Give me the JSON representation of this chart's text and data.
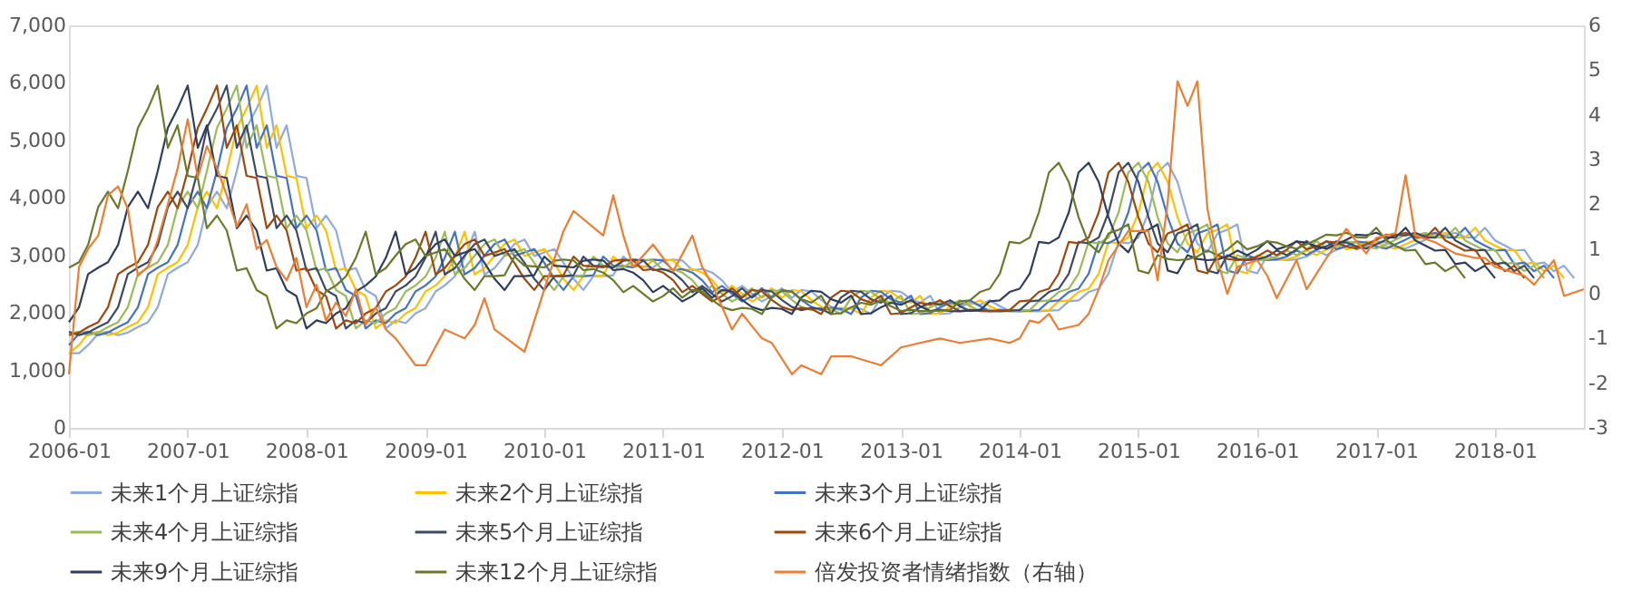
{
  "chart_data": {
    "type": "line",
    "x": [
      "2006-01",
      "2006-02",
      "2006-03",
      "2006-04",
      "2006-05",
      "2006-06",
      "2006-07",
      "2006-08",
      "2006-09",
      "2006-10",
      "2006-11",
      "2006-12",
      "2007-01",
      "2007-02",
      "2007-03",
      "2007-04",
      "2007-05",
      "2007-06",
      "2007-07",
      "2007-08",
      "2007-09",
      "2007-10",
      "2007-11",
      "2007-12",
      "2008-01",
      "2008-02",
      "2008-03",
      "2008-04",
      "2008-05",
      "2008-06",
      "2008-07",
      "2008-08",
      "2008-09",
      "2008-10",
      "2008-11",
      "2008-12",
      "2009-01",
      "2009-02",
      "2009-03",
      "2009-04",
      "2009-05",
      "2009-06",
      "2009-07",
      "2009-08",
      "2009-09",
      "2009-10",
      "2009-11",
      "2009-12",
      "2010-01",
      "2010-02",
      "2010-03",
      "2010-04",
      "2010-05",
      "2010-06",
      "2010-07",
      "2010-08",
      "2010-09",
      "2010-10",
      "2010-11",
      "2010-12",
      "2011-01",
      "2011-02",
      "2011-03",
      "2011-04",
      "2011-05",
      "2011-06",
      "2011-07",
      "2011-08",
      "2011-09",
      "2011-10",
      "2011-11",
      "2011-12",
      "2012-01",
      "2012-02",
      "2012-03",
      "2012-04",
      "2012-05",
      "2012-06",
      "2012-07",
      "2012-08",
      "2012-09",
      "2012-10",
      "2012-11",
      "2012-12",
      "2013-01",
      "2013-02",
      "2013-03",
      "2013-04",
      "2013-05",
      "2013-06",
      "2013-07",
      "2013-08",
      "2013-09",
      "2013-10",
      "2013-11",
      "2013-12",
      "2014-01",
      "2014-02",
      "2014-03",
      "2014-04",
      "2014-05",
      "2014-06",
      "2014-07",
      "2014-08",
      "2014-09",
      "2014-10",
      "2014-11",
      "2014-12",
      "2015-01",
      "2015-02",
      "2015-03",
      "2015-04",
      "2015-05",
      "2015-06",
      "2015-07",
      "2015-08",
      "2015-09",
      "2015-10",
      "2015-11",
      "2015-12",
      "2016-01",
      "2016-02",
      "2016-03",
      "2016-04",
      "2016-05",
      "2016-06",
      "2016-07",
      "2016-08",
      "2016-09",
      "2016-10",
      "2016-11",
      "2016-12",
      "2017-01",
      "2017-02",
      "2017-03",
      "2017-04",
      "2017-05",
      "2017-06",
      "2017-07",
      "2017-08",
      "2017-09",
      "2017-10",
      "2017-11",
      "2017-12",
      "2018-01",
      "2018-02",
      "2018-03",
      "2018-04",
      "2018-05",
      "2018-06",
      "2018-07",
      "2018-08",
      "2018-09"
    ],
    "series": [
      {
        "name": "未来1个月上证综指",
        "color": "#8faadc",
        "values": [
          1299,
          1298,
          1440,
          1641,
          1672,
          1612,
          1658,
          1753,
          1838,
          2099,
          2675,
          2786,
          2881,
          3183,
          3841,
          4109,
          3820,
          4471,
          5218,
          5552,
          5954,
          4871,
          5262,
          4383,
          4348,
          3473,
          3693,
          3433,
          2736,
          2776,
          2397,
          2293,
          1729,
          1871,
          1821,
          1991,
          2082,
          2373,
          2477,
          2633,
          2959,
          3412,
          2668,
          2779,
          2996,
          3195,
          3277,
          2989,
          3051,
          3110,
          2871,
          2592,
          2398,
          2638,
          2639,
          2656,
          2979,
          2820,
          2808,
          2791,
          2906,
          2928,
          2912,
          2743,
          2762,
          2701,
          2568,
          2359,
          2469,
          2333,
          2199,
          2292,
          2429,
          2263,
          2397,
          2373,
          2226,
          2103,
          2047,
          2086,
          2069,
          1980,
          2269,
          2385,
          2366,
          2237,
          2178,
          2301,
          1979,
          1994,
          2098,
          2175,
          2141,
          2220,
          2116,
          2033,
          2056,
          2033,
          2026,
          2039,
          2048,
          2202,
          2217,
          2364,
          2420,
          2683,
          3235,
          3210,
          3310,
          3748,
          4442,
          4612,
          4277,
          3664,
          3206,
          3053,
          3383,
          3446,
          3539,
          2738,
          2688,
          3004,
          2938,
          2917,
          2930,
          2979,
          3085,
          3005,
          3100,
          3250,
          3104,
          3159,
          3242,
          3223,
          3155,
          3117,
          3192,
          3273,
          3361,
          3349,
          3393,
          3317,
          3307,
          3481,
          3259,
          3169,
          3082,
          3095,
          2847,
          2876,
          2725,
          2821,
          2603
        ]
      },
      {
        "name": "未来2个月上证综指",
        "color": "#ffc000",
        "values": [
          1298,
          1440,
          1641,
          1672,
          1612,
          1658,
          1753,
          1838,
          2099,
          2675,
          2786,
          2881,
          3183,
          3841,
          4109,
          3820,
          4471,
          5218,
          5552,
          5954,
          4871,
          5262,
          4383,
          4348,
          3473,
          3693,
          3433,
          2736,
          2776,
          2397,
          2293,
          1729,
          1871,
          1821,
          1991,
          2082,
          2373,
          2477,
          2633,
          2959,
          3412,
          2668,
          2779,
          2996,
          3195,
          3277,
          2989,
          3051,
          3110,
          2871,
          2592,
          2398,
          2638,
          2639,
          2656,
          2979,
          2820,
          2808,
          2791,
          2906,
          2928,
          2912,
          2743,
          2762,
          2701,
          2568,
          2359,
          2469,
          2333,
          2199,
          2292,
          2429,
          2263,
          2397,
          2373,
          2226,
          2103,
          2047,
          2086,
          2069,
          1980,
          2269,
          2385,
          2366,
          2237,
          2178,
          2301,
          1979,
          1994,
          2098,
          2175,
          2141,
          2220,
          2116,
          2033,
          2056,
          2033,
          2026,
          2039,
          2048,
          2202,
          2217,
          2364,
          2420,
          2683,
          3235,
          3210,
          3310,
          3748,
          4442,
          4612,
          4277,
          3664,
          3206,
          3053,
          3383,
          3446,
          3539,
          2738,
          2688,
          3004,
          2938,
          2917,
          2930,
          2979,
          3085,
          3005,
          3100,
          3250,
          3104,
          3159,
          3242,
          3223,
          3155,
          3117,
          3192,
          3273,
          3361,
          3349,
          3393,
          3317,
          3307,
          3481,
          3259,
          3169,
          3082,
          3095,
          2847,
          2876,
          2725,
          2821,
          2603,
          null
        ]
      },
      {
        "name": "未来3个月上证综指",
        "color": "#4472c4",
        "values": [
          1440,
          1641,
          1672,
          1612,
          1658,
          1753,
          1838,
          2099,
          2675,
          2786,
          2881,
          3183,
          3841,
          4109,
          3820,
          4471,
          5218,
          5552,
          5954,
          4871,
          5262,
          4383,
          4348,
          3473,
          3693,
          3433,
          2736,
          2776,
          2397,
          2293,
          1729,
          1871,
          1821,
          1991,
          2082,
          2373,
          2477,
          2633,
          2959,
          3412,
          2668,
          2779,
          2996,
          3195,
          3277,
          2989,
          3051,
          3110,
          2871,
          2592,
          2398,
          2638,
          2639,
          2656,
          2979,
          2820,
          2808,
          2791,
          2906,
          2928,
          2912,
          2743,
          2762,
          2701,
          2568,
          2359,
          2469,
          2333,
          2199,
          2292,
          2429,
          2263,
          2397,
          2373,
          2226,
          2103,
          2047,
          2086,
          2069,
          1980,
          2269,
          2385,
          2366,
          2237,
          2178,
          2301,
          1979,
          1994,
          2098,
          2175,
          2141,
          2220,
          2116,
          2033,
          2056,
          2033,
          2026,
          2039,
          2048,
          2202,
          2217,
          2364,
          2420,
          2683,
          3235,
          3210,
          3310,
          3748,
          4442,
          4612,
          4277,
          3664,
          3206,
          3053,
          3383,
          3446,
          3539,
          2738,
          2688,
          3004,
          2938,
          2917,
          2930,
          2979,
          3085,
          3005,
          3100,
          3250,
          3104,
          3159,
          3242,
          3223,
          3155,
          3117,
          3192,
          3273,
          3361,
          3349,
          3393,
          3317,
          3307,
          3481,
          3259,
          3169,
          3082,
          3095,
          2847,
          2876,
          2725,
          2821,
          2603,
          null,
          null
        ]
      },
      {
        "name": "未来4个月上证综指",
        "color": "#9bbb59",
        "values": [
          1641,
          1672,
          1612,
          1658,
          1753,
          1838,
          2099,
          2675,
          2786,
          2881,
          3183,
          3841,
          4109,
          3820,
          4471,
          5218,
          5552,
          5954,
          4871,
          5262,
          4383,
          4348,
          3473,
          3693,
          3433,
          2736,
          2776,
          2397,
          2293,
          1729,
          1871,
          1821,
          1991,
          2082,
          2373,
          2477,
          2633,
          2959,
          3412,
          2668,
          2779,
          2996,
          3195,
          3277,
          2989,
          3051,
          3110,
          2871,
          2592,
          2398,
          2638,
          2639,
          2656,
          2979,
          2820,
          2808,
          2791,
          2906,
          2928,
          2912,
          2743,
          2762,
          2701,
          2568,
          2359,
          2469,
          2333,
          2199,
          2292,
          2429,
          2263,
          2397,
          2373,
          2226,
          2103,
          2047,
          2086,
          2069,
          1980,
          2269,
          2385,
          2366,
          2237,
          2178,
          2301,
          1979,
          1994,
          2098,
          2175,
          2141,
          2220,
          2116,
          2033,
          2056,
          2033,
          2026,
          2039,
          2048,
          2202,
          2217,
          2364,
          2420,
          2683,
          3235,
          3210,
          3310,
          3748,
          4442,
          4612,
          4277,
          3664,
          3206,
          3053,
          3383,
          3446,
          3539,
          2738,
          2688,
          3004,
          2938,
          2917,
          2930,
          2979,
          3085,
          3005,
          3100,
          3250,
          3104,
          3159,
          3242,
          3223,
          3155,
          3117,
          3192,
          3273,
          3361,
          3349,
          3393,
          3317,
          3307,
          3481,
          3259,
          3169,
          3082,
          3095,
          2847,
          2876,
          2725,
          2821,
          2603,
          null,
          null,
          null
        ]
      },
      {
        "name": "未来5个月上证综指",
        "color": "#3b4a66",
        "values": [
          1672,
          1612,
          1658,
          1753,
          1838,
          2099,
          2675,
          2786,
          2881,
          3183,
          3841,
          4109,
          3820,
          4471,
          5218,
          5552,
          5954,
          4871,
          5262,
          4383,
          4348,
          3473,
          3693,
          3433,
          2736,
          2776,
          2397,
          2293,
          1729,
          1871,
          1821,
          1991,
          2082,
          2373,
          2477,
          2633,
          2959,
          3412,
          2668,
          2779,
          2996,
          3195,
          3277,
          2989,
          3051,
          3110,
          2871,
          2592,
          2398,
          2638,
          2639,
          2656,
          2979,
          2820,
          2808,
          2791,
          2906,
          2928,
          2912,
          2743,
          2762,
          2701,
          2568,
          2359,
          2469,
          2333,
          2199,
          2292,
          2429,
          2263,
          2397,
          2373,
          2226,
          2103,
          2047,
          2086,
          2069,
          1980,
          2269,
          2385,
          2366,
          2237,
          2178,
          2301,
          1979,
          1994,
          2098,
          2175,
          2141,
          2220,
          2116,
          2033,
          2056,
          2033,
          2026,
          2039,
          2048,
          2202,
          2217,
          2364,
          2420,
          2683,
          3235,
          3210,
          3310,
          3748,
          4442,
          4612,
          4277,
          3664,
          3206,
          3053,
          3383,
          3446,
          3539,
          2738,
          2688,
          3004,
          2938,
          2917,
          2930,
          2979,
          3085,
          3005,
          3100,
          3250,
          3104,
          3159,
          3242,
          3223,
          3155,
          3117,
          3192,
          3273,
          3361,
          3349,
          3393,
          3317,
          3307,
          3481,
          3259,
          3169,
          3082,
          3095,
          2847,
          2876,
          2725,
          2821,
          2603,
          null,
          null,
          null,
          null
        ]
      },
      {
        "name": "未来6个月上证综指",
        "color": "#9e480e",
        "values": [
          1612,
          1658,
          1753,
          1838,
          2099,
          2675,
          2786,
          2881,
          3183,
          3841,
          4109,
          3820,
          4471,
          5218,
          5552,
          5954,
          4871,
          5262,
          4383,
          4348,
          3473,
          3693,
          3433,
          2736,
          2776,
          2397,
          2293,
          1729,
          1871,
          1821,
          1991,
          2082,
          2373,
          2477,
          2633,
          2959,
          3412,
          2668,
          2779,
          2996,
          3195,
          3277,
          2989,
          3051,
          3110,
          2871,
          2592,
          2398,
          2638,
          2639,
          2656,
          2979,
          2820,
          2808,
          2791,
          2906,
          2928,
          2912,
          2743,
          2762,
          2701,
          2568,
          2359,
          2469,
          2333,
          2199,
          2292,
          2429,
          2263,
          2397,
          2373,
          2226,
          2103,
          2047,
          2086,
          2069,
          1980,
          2269,
          2385,
          2366,
          2237,
          2178,
          2301,
          1979,
          1994,
          2098,
          2175,
          2141,
          2220,
          2116,
          2033,
          2056,
          2033,
          2026,
          2039,
          2048,
          2202,
          2217,
          2364,
          2420,
          2683,
          3235,
          3210,
          3310,
          3748,
          4442,
          4612,
          4277,
          3664,
          3206,
          3053,
          3383,
          3446,
          3539,
          2738,
          2688,
          3004,
          2938,
          2917,
          2930,
          2979,
          3085,
          3005,
          3100,
          3250,
          3104,
          3159,
          3242,
          3223,
          3155,
          3117,
          3192,
          3273,
          3361,
          3349,
          3393,
          3317,
          3307,
          3481,
          3259,
          3169,
          3082,
          3095,
          2847,
          2876,
          2725,
          2821,
          2603,
          null,
          null,
          null,
          null,
          null
        ]
      },
      {
        "name": "未来9个月上证综指",
        "color": "#2f3e5c",
        "values": [
          1838,
          2099,
          2675,
          2786,
          2881,
          3183,
          3841,
          4109,
          3820,
          4471,
          5218,
          5552,
          5954,
          4871,
          5262,
          4383,
          4348,
          3473,
          3693,
          3433,
          2736,
          2776,
          2397,
          2293,
          1729,
          1871,
          1821,
          1991,
          2082,
          2373,
          2477,
          2633,
          2959,
          3412,
          2668,
          2779,
          2996,
          3195,
          3277,
          2989,
          3051,
          3110,
          2871,
          2592,
          2398,
          2638,
          2639,
          2656,
          2979,
          2820,
          2808,
          2791,
          2906,
          2928,
          2912,
          2743,
          2762,
          2701,
          2568,
          2359,
          2469,
          2333,
          2199,
          2292,
          2429,
          2263,
          2397,
          2373,
          2226,
          2103,
          2047,
          2086,
          2069,
          1980,
          2269,
          2385,
          2366,
          2237,
          2178,
          2301,
          1979,
          1994,
          2098,
          2175,
          2141,
          2220,
          2116,
          2033,
          2056,
          2033,
          2026,
          2039,
          2048,
          2202,
          2217,
          2364,
          2420,
          2683,
          3235,
          3210,
          3310,
          3748,
          4442,
          4612,
          4277,
          3664,
          3206,
          3053,
          3383,
          3446,
          3539,
          2738,
          2688,
          3004,
          2938,
          2917,
          2930,
          2979,
          3085,
          3005,
          3100,
          3250,
          3104,
          3159,
          3242,
          3223,
          3155,
          3117,
          3192,
          3273,
          3361,
          3349,
          3393,
          3317,
          3307,
          3481,
          3259,
          3169,
          3082,
          3095,
          2847,
          2876,
          2725,
          2821,
          2603,
          null,
          null,
          null,
          null,
          null,
          null,
          null,
          null
        ]
      },
      {
        "name": "未来12个月上证综指",
        "color": "#6a7a2a",
        "values": [
          2786,
          2881,
          3183,
          3841,
          4109,
          3820,
          4471,
          5218,
          5552,
          5954,
          4871,
          5262,
          4383,
          4348,
          3473,
          3693,
          3433,
          2736,
          2776,
          2397,
          2293,
          1729,
          1871,
          1821,
          1991,
          2082,
          2373,
          2477,
          2633,
          2959,
          3412,
          2668,
          2779,
          2996,
          3195,
          3277,
          2989,
          3051,
          3110,
          2871,
          2592,
          2398,
          2638,
          2639,
          2656,
          2979,
          2820,
          2808,
          2791,
          2906,
          2928,
          2912,
          2743,
          2762,
          2701,
          2568,
          2359,
          2469,
          2333,
          2199,
          2292,
          2429,
          2263,
          2397,
          2373,
          2226,
          2103,
          2047,
          2086,
          2069,
          1980,
          2269,
          2385,
          2366,
          2237,
          2178,
          2301,
          1979,
          1994,
          2098,
          2175,
          2141,
          2220,
          2116,
          2033,
          2056,
          2033,
          2026,
          2039,
          2048,
          2202,
          2217,
          2364,
          2420,
          2683,
          3235,
          3210,
          3310,
          3748,
          4442,
          4612,
          4277,
          3664,
          3206,
          3053,
          3383,
          3446,
          3539,
          2738,
          2688,
          3004,
          2938,
          2917,
          2930,
          2979,
          3085,
          3005,
          3100,
          3250,
          3104,
          3159,
          3242,
          3223,
          3155,
          3117,
          3192,
          3273,
          3361,
          3349,
          3393,
          3317,
          3307,
          3481,
          3259,
          3169,
          3082,
          3095,
          2847,
          2876,
          2725,
          2821,
          2603,
          null,
          null,
          null,
          null,
          null,
          null,
          null,
          null,
          null,
          null,
          null
        ]
      },
      {
        "name": "倍发投资者情绪指数（右轴）",
        "color": "#ed7d31",
        "axis": "y2",
        "x": [
          "2006-01",
          "2006-02",
          "2006-03",
          "2006-04",
          "2006-05",
          "2006-06",
          "2006-07",
          "2006-08",
          "2006-09",
          "2006-10",
          "2006-11",
          "2006-12",
          "2007-01",
          "2007-02",
          "2007-03",
          "2007-04",
          "2007-05",
          "2007-06",
          "2007-07",
          "2007-08",
          "2007-09",
          "2007-10",
          "2007-11",
          "2007-12",
          "2008-01",
          "2008-02",
          "2008-03",
          "2008-04",
          "2008-05",
          "2008-06",
          "2008-07",
          "2008-08",
          "2008-09",
          "2008-10",
          "2008-11",
          "2008-12",
          "2009-01",
          "2009-03",
          "2009-05",
          "2009-06",
          "2009-07",
          "2009-08",
          "2009-11",
          "2010-01",
          "2010-03",
          "2010-04",
          "2010-07",
          "2010-08",
          "2010-09",
          "2010-10",
          "2010-12",
          "2011-02",
          "2011-04",
          "2011-05",
          "2011-06",
          "2011-08",
          "2011-09",
          "2011-11",
          "2011-12",
          "2012-02",
          "2012-03",
          "2012-05",
          "2012-06",
          "2012-08",
          "2012-11",
          "2013-01",
          "2013-03",
          "2013-05",
          "2013-07",
          "2013-10",
          "2013-12",
          "2014-01",
          "2014-02",
          "2014-03",
          "2014-04",
          "2014-05",
          "2014-07",
          "2014-08",
          "2014-09",
          "2014-10",
          "2014-12",
          "2015-02",
          "2015-03",
          "2015-04",
          "2015-05",
          "2015-06",
          "2015-07",
          "2015-08",
          "2015-09",
          "2015-10",
          "2015-11",
          "2016-01",
          "2016-02",
          "2016-03",
          "2016-05",
          "2016-06",
          "2016-08",
          "2016-10",
          "2016-12",
          "2017-01",
          "2017-03",
          "2017-04",
          "2017-05",
          "2017-07",
          "2017-09",
          "2017-11",
          "2017-12",
          "2018-01",
          "2018-04",
          "2018-05",
          "2018-07",
          "2018-08",
          "2018-10"
        ],
        "values": [
          -1.8,
          0.6,
          1.0,
          1.3,
          2.2,
          2.4,
          1.9,
          0.4,
          0.6,
          1.2,
          2.0,
          2.8,
          3.9,
          2.6,
          3.3,
          2.8,
          2.2,
          1.5,
          2.0,
          1.0,
          1.2,
          0.6,
          0.3,
          0.8,
          -0.3,
          0.2,
          -0.6,
          -0.2,
          -0.5,
          0.1,
          -0.7,
          -0.3,
          -0.8,
          -1.0,
          -1.3,
          -1.6,
          -1.6,
          -0.8,
          -1.0,
          -0.7,
          -0.1,
          -0.8,
          -1.3,
          0.1,
          1.4,
          1.85,
          1.3,
          2.2,
          1.3,
          0.6,
          1.1,
          0.5,
          1.3,
          0.6,
          0.2,
          -0.8,
          -0.45,
          -1.0,
          -1.1,
          -1.8,
          -1.6,
          -1.8,
          -1.4,
          -1.4,
          -1.6,
          -1.2,
          -1.1,
          -1.0,
          -1.1,
          -1.0,
          -1.1,
          -1.0,
          -0.6,
          -0.65,
          -0.45,
          -0.8,
          -0.7,
          -0.45,
          0.1,
          0.75,
          1.4,
          1.4,
          0.3,
          2.05,
          4.75,
          4.2,
          4.75,
          1.9,
          0.75,
          0.0,
          0.6,
          0.75,
          0.4,
          -0.1,
          0.75,
          0.1,
          0.8,
          1.45,
          0.9,
          1.25,
          1.35,
          2.65,
          1.3,
          1.15,
          0.9,
          0.8,
          0.8,
          0.6,
          0.4,
          0.2,
          0.75,
          -0.05,
          0.1
        ]
      }
    ],
    "xlim": [
      "2006-01",
      "2018-10"
    ],
    "xticks": [
      "2006-01",
      "2007-01",
      "2008-01",
      "2009-01",
      "2010-01",
      "2011-01",
      "2012-01",
      "2013-01",
      "2014-01",
      "2015-01",
      "2016-01",
      "2017-01",
      "2018-01"
    ],
    "ylim": [
      0,
      7000
    ],
    "yticks": [
      0,
      {
        "value": 1000,
        "label": "1,000"
      },
      {
        "value": 2000,
        "label": "2,000"
      },
      {
        "value": 3000,
        "label": "3,000"
      },
      {
        "value": 4000,
        "label": "4,000"
      },
      {
        "value": 5000,
        "label": "5,000"
      },
      {
        "value": 6000,
        "label": "6,000"
      },
      {
        "value": 7000,
        "label": "7,000"
      }
    ],
    "y2lim": [
      -3,
      6
    ],
    "y2ticks": [
      -3,
      -2,
      -1,
      0,
      1,
      2,
      3,
      4,
      5,
      6
    ],
    "legend": "bottom",
    "grid": false,
    "marker": "none",
    "line_style": "solid"
  }
}
